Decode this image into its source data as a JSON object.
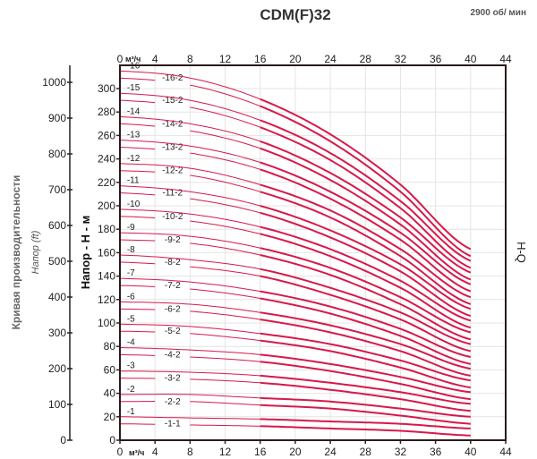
{
  "chart_data": {
    "type": "line",
    "title": "CDM(F)32",
    "subtitle": "2900 об/ мин",
    "xlabel_unit": "м³/ч",
    "ylabel": "Напор - Н - м",
    "ylabel_ft": "Напор (ft)",
    "side_label": "Кривая производительности",
    "curve_label": "H-Q",
    "xlim": [
      0,
      44
    ],
    "ylim": [
      0,
      300
    ],
    "ylim_ft": [
      0,
      1000
    ],
    "x_ticks": [
      "0",
      "4",
      "8",
      "12",
      "16",
      "20",
      "24",
      "28",
      "32",
      "36",
      "40",
      "44"
    ],
    "y_ticks": [
      "0",
      "20",
      "40",
      "60",
      "80",
      "100",
      "120",
      "140",
      "160",
      "180",
      "200",
      "220",
      "240",
      "260",
      "280",
      "300"
    ],
    "y_ft_ticks": [
      "0",
      "100",
      "200",
      "300",
      "400",
      "500",
      "600",
      "700",
      "800",
      "900",
      "1000"
    ],
    "grid": true,
    "line_color": "#d6194b",
    "x": [
      0,
      8,
      16,
      24,
      32,
      40
    ],
    "series": [
      {
        "name": "-1-1",
        "values": [
          14,
          13,
          12,
          10,
          8,
          4
        ],
        "reduced": true
      },
      {
        "name": "-1",
        "values": [
          20,
          19,
          18,
          16,
          14,
          10
        ]
      },
      {
        "name": "-2-2",
        "values": [
          33,
          33,
          30,
          27,
          21,
          14
        ],
        "reduced": true
      },
      {
        "name": "-2",
        "values": [
          39,
          39,
          36,
          33,
          27,
          20
        ]
      },
      {
        "name": "-3-2",
        "values": [
          53,
          52,
          49,
          43,
          35,
          25
        ],
        "reduced": true
      },
      {
        "name": "-3",
        "values": [
          59,
          58,
          55,
          49,
          41,
          31
        ]
      },
      {
        "name": "-4-2",
        "values": [
          73,
          71,
          67,
          59,
          48,
          35
        ],
        "reduced": true
      },
      {
        "name": "-4",
        "values": [
          79,
          77,
          73,
          65,
          54,
          41
        ]
      },
      {
        "name": "-5-2",
        "values": [
          93,
          91,
          85,
          76,
          62,
          45
        ],
        "reduced": true
      },
      {
        "name": "-5",
        "values": [
          99,
          97,
          91,
          82,
          68,
          51
        ]
      },
      {
        "name": "-6-2",
        "values": [
          112,
          110,
          103,
          92,
          76,
          55
        ],
        "reduced": true
      },
      {
        "name": "-6",
        "values": [
          118,
          116,
          109,
          98,
          82,
          61
        ]
      },
      {
        "name": "-7-2",
        "values": [
          132,
          129,
          121,
          108,
          89,
          65
        ],
        "reduced": true
      },
      {
        "name": "-7",
        "values": [
          138,
          135,
          127,
          114,
          95,
          71
        ]
      },
      {
        "name": "-8-2",
        "values": [
          152,
          148,
          140,
          124,
          103,
          76
        ],
        "reduced": true
      },
      {
        "name": "-8",
        "values": [
          158,
          154,
          146,
          130,
          109,
          82
        ]
      },
      {
        "name": "-9-2",
        "values": [
          171,
          168,
          158,
          141,
          116,
          86
        ],
        "reduced": true
      },
      {
        "name": "-9",
        "values": [
          177,
          174,
          164,
          147,
          122,
          92
        ]
      },
      {
        "name": "-10-2",
        "values": [
          191,
          187,
          176,
          157,
          130,
          96
        ],
        "reduced": true
      },
      {
        "name": "-10",
        "values": [
          197,
          193,
          182,
          163,
          136,
          102
        ]
      },
      {
        "name": "-11-2",
        "values": [
          211,
          206,
          194,
          173,
          144,
          106
        ],
        "reduced": true
      },
      {
        "name": "-11",
        "values": [
          217,
          212,
          200,
          179,
          150,
          112
        ]
      },
      {
        "name": "-12-2",
        "values": [
          230,
          226,
          212,
          190,
          157,
          116
        ],
        "reduced": true
      },
      {
        "name": "-12",
        "values": [
          236,
          232,
          218,
          196,
          163,
          122
        ]
      },
      {
        "name": "-13-2",
        "values": [
          250,
          245,
          231,
          206,
          171,
          127
        ],
        "reduced": true
      },
      {
        "name": "-13",
        "values": [
          256,
          251,
          237,
          212,
          177,
          133
        ]
      },
      {
        "name": "-14-2",
        "values": [
          270,
          264,
          249,
          222,
          184,
          137
        ],
        "reduced": true
      },
      {
        "name": "-14",
        "values": [
          276,
          270,
          255,
          228,
          190,
          143
        ]
      },
      {
        "name": "-15-2",
        "values": [
          290,
          284,
          267,
          239,
          198,
          147
        ],
        "reduced": true
      },
      {
        "name": "-15",
        "values": [
          296,
          290,
          273,
          245,
          204,
          153
        ]
      },
      {
        "name": "-16-2",
        "values": [
          309,
          303,
          285,
          255,
          212,
          157
        ],
        "reduced": true
      },
      {
        "name": "-16",
        "values": [
          315,
          309,
          291,
          261,
          218,
          163
        ]
      }
    ]
  }
}
